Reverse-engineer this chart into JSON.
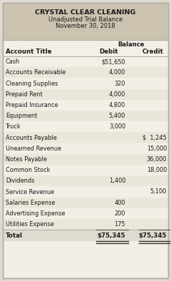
{
  "title_line1": "CRYSTAL CLEAR CLEANING",
  "title_line2": "Unadjusted Trial Balance",
  "title_line3": "November 30, 2018",
  "header_balance": "Balance",
  "col_account": "Account Title",
  "col_debit": "Debit",
  "col_credit": "Credit",
  "rows": [
    {
      "account": "Cash",
      "debit": "$51,650",
      "credit": ""
    },
    {
      "account": "Accounts Receivable",
      "debit": "4,000",
      "credit": ""
    },
    {
      "account": "Cleaning Supplies",
      "debit": "320",
      "credit": ""
    },
    {
      "account": "Prepaid Rent",
      "debit": "4,000",
      "credit": ""
    },
    {
      "account": "Prepaid Insurance",
      "debit": "4,800",
      "credit": ""
    },
    {
      "account": "Equipment",
      "debit": "5,400",
      "credit": ""
    },
    {
      "account": "Truck",
      "debit": "3,000",
      "credit": ""
    },
    {
      "account": "Accounts Payable",
      "debit": "",
      "credit": "$  1,245"
    },
    {
      "account": "Unearned Revenue",
      "debit": "",
      "credit": "15,000"
    },
    {
      "account": "Notes Payable",
      "debit": "",
      "credit": "36,000"
    },
    {
      "account": "Common Stock",
      "debit": "",
      "credit": "18,000"
    },
    {
      "account": "Dividends",
      "debit": "1,400",
      "credit": ""
    },
    {
      "account": "Service Revenue",
      "debit": "",
      "credit": "5,100"
    },
    {
      "account": "Salaries Expense",
      "debit": "400",
      "credit": ""
    },
    {
      "account": "Advertising Expense",
      "debit": "200",
      "credit": ""
    },
    {
      "account": "Utilities Expense",
      "debit": "175",
      "credit": ""
    }
  ],
  "total_row": {
    "account": "Total",
    "debit": "$75,345",
    "credit": "$75,345"
  },
  "header_bg": "#cbc3af",
  "row_bg_even": "#f2efe6",
  "row_bg_odd": "#eae6d9",
  "total_bg": "#e0dbd0",
  "border_color": "#aaaaaa",
  "text_color": "#1a1a1a",
  "fig_bg": "#dedad0"
}
